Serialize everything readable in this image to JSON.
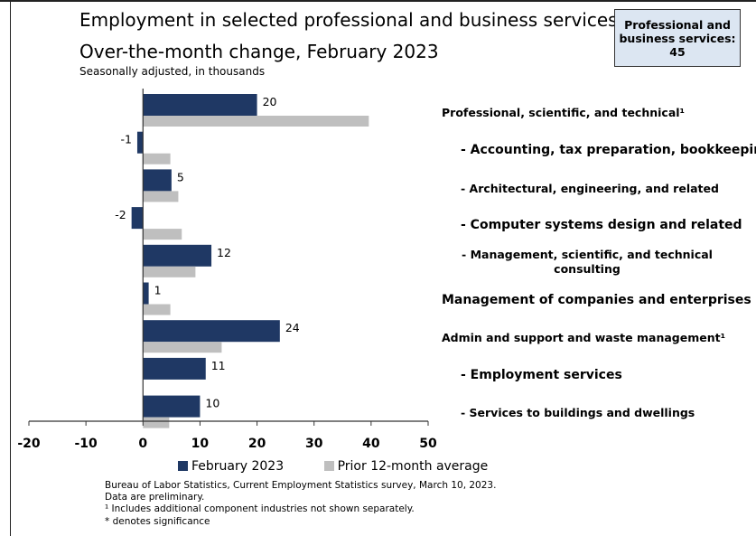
{
  "title": "Employment in selected professional and business services",
  "subtitle": "Over-the-month change, February 2023",
  "units": "Seasonally adjusted, in thousands",
  "callout": {
    "label": "Professional and business services:",
    "value": "45"
  },
  "legend": {
    "february": "February 2023",
    "average": "Prior 12-month average"
  },
  "notes": [
    "Bureau of Labor Statistics, Current Employment Statistics survey, March 10, 2023.",
    "Data are preliminary.",
    "¹ Includes additional component industries not shown separately.",
    "* denotes significance"
  ],
  "colors": {
    "february": "#1f3864",
    "average": "#bfbfbf"
  },
  "chart_data": {
    "type": "bar",
    "orientation": "horizontal",
    "title": "Employment in selected professional and business services",
    "subtitle": "Over-the-month change, February 2023",
    "xlim": [
      -20,
      50
    ],
    "xticks": [
      "-20",
      "-10",
      "0",
      "10",
      "20",
      "30",
      "40",
      "50"
    ],
    "categories": [
      "Professional, scientific, and technical¹",
      "- Accounting, tax preparation, bookkeeping",
      "- Architectural, engineering, and related",
      "- Computer systems design and related",
      "- Management, scientific, and technical consulting",
      "Management of companies and enterprises",
      "Admin and support and waste management¹",
      "- Employment services",
      "- Services to buildings and dwellings"
    ],
    "series": [
      {
        "name": "February 2023",
        "values": [
          20,
          -1,
          5,
          -2,
          12,
          1,
          24,
          11,
          10
        ],
        "labels": [
          "20",
          "-1",
          "5",
          "-2",
          "12",
          "1",
          "24",
          "11",
          "10"
        ]
      },
      {
        "name": "Prior 12-month average",
        "values": [
          39.6,
          4.8,
          6.2,
          6.8,
          9.2,
          4.8,
          13.8,
          0,
          4.6
        ]
      }
    ],
    "legend_position": "bottom",
    "grid": false
  }
}
